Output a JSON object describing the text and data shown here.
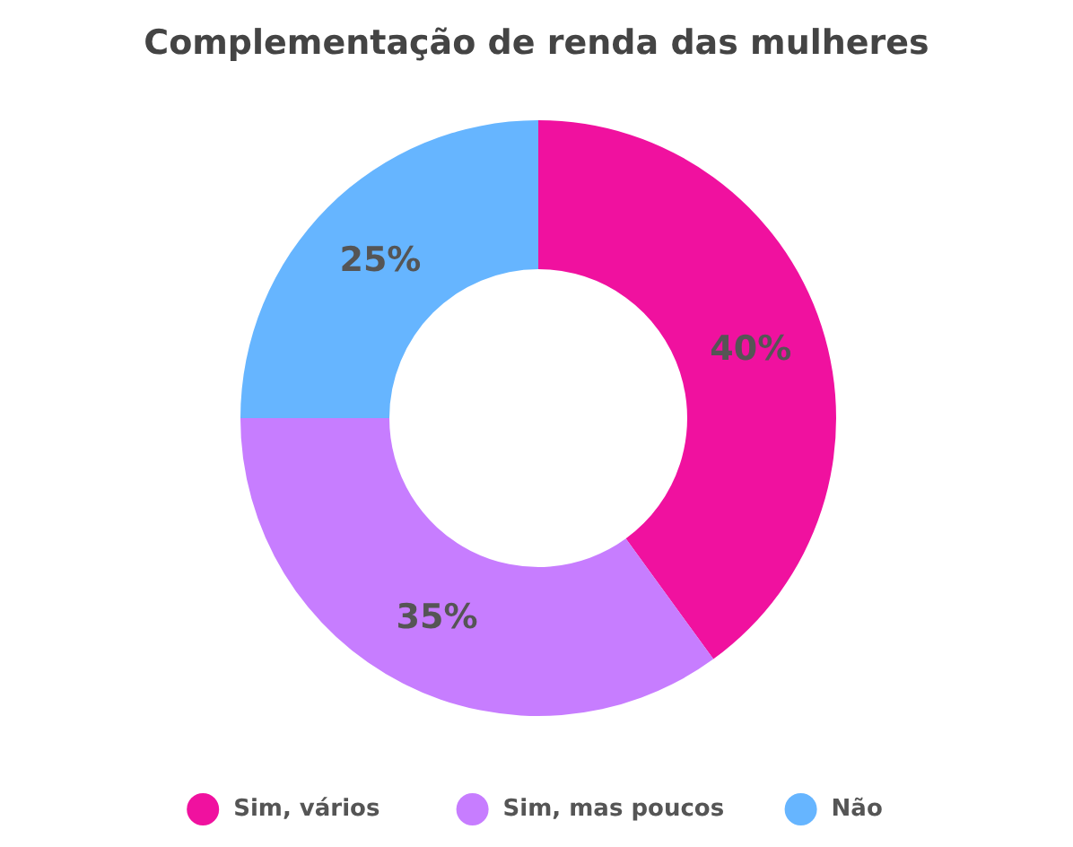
{
  "chart_data": {
    "type": "donut",
    "title": "Complementação de renda das mulheres",
    "categories": [
      "Sim, vários",
      "Sim, mas poucos",
      "Não"
    ],
    "values": [
      40,
      35,
      25
    ],
    "colors": [
      "#f0119f",
      "#c77dff",
      "#66b5ff"
    ],
    "value_labels": [
      "40%",
      "35%",
      "25%"
    ],
    "legend": "bottom"
  }
}
